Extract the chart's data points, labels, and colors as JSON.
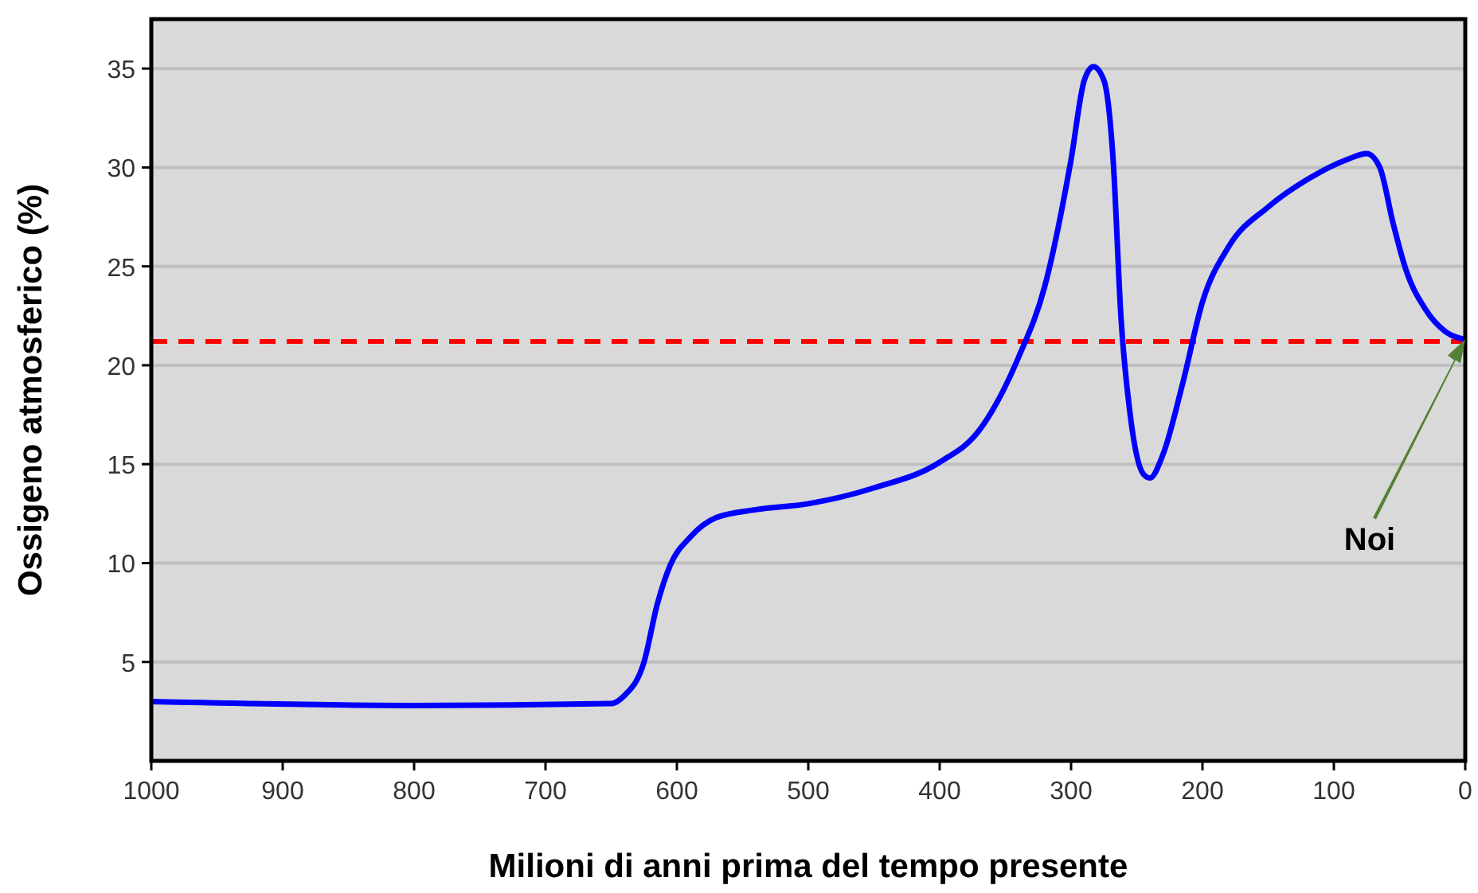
{
  "chart_data": {
    "type": "line",
    "xlabel": "Milioni di anni prima del tempo presente",
    "ylabel": "Ossigeno atmosferico (%)",
    "xlim": [
      1000,
      0
    ],
    "xticks": [
      1000,
      900,
      800,
      700,
      600,
      500,
      400,
      300,
      200,
      100,
      0
    ],
    "ylim": [
      0,
      37.5
    ],
    "yticks": [
      5,
      10,
      15,
      20,
      25,
      30,
      35
    ],
    "grid": "y",
    "line_style": "solid",
    "marker": "none",
    "x": [
      1000,
      800,
      650,
      640,
      625,
      615,
      605,
      590,
      570,
      540,
      500,
      450,
      400,
      370,
      340,
      320,
      300,
      290,
      283,
      275,
      268,
      262,
      255,
      245,
      240,
      230,
      215,
      200,
      180,
      150,
      120,
      90,
      75,
      65,
      55,
      45,
      30,
      15,
      0
    ],
    "series": [
      {
        "color": "#0000ff",
        "values": [
          3.0,
          2.8,
          2.9,
          3.3,
          5,
          7.9,
          9.9,
          11.3,
          12.3,
          12.7,
          13.0,
          13.8,
          15.1,
          16.7,
          20.4,
          24,
          30.4,
          34.4,
          35.1,
          34.4,
          30.4,
          22.4,
          17.5,
          14.5,
          14.3,
          15.5,
          19.1,
          23.2,
          26,
          28,
          29.4,
          30.4,
          30.7,
          30,
          27.2,
          24.8,
          22.8,
          21.7,
          21.3
        ]
      }
    ],
    "ref_lines": [
      {
        "axis": "y",
        "value": 21.2,
        "color": "#ff0000",
        "line_style": "dashed"
      }
    ],
    "annotations": [
      "Noi"
    ]
  }
}
